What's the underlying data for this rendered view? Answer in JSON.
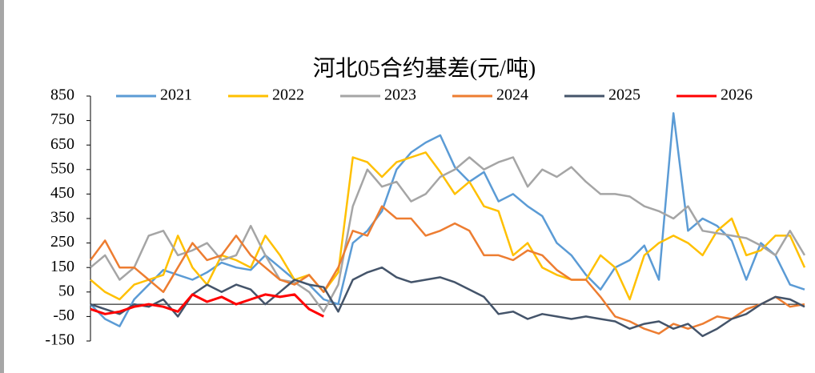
{
  "chart_data": {
    "type": "line",
    "title": "河北05合约基差(元/吨)",
    "categories": [
      null,
      null,
      null,
      null,
      null,
      null,
      null,
      null,
      null,
      null,
      null,
      null,
      null,
      null,
      null,
      null,
      null,
      null,
      null,
      null,
      null,
      null,
      null,
      null,
      null,
      null,
      null,
      null,
      null,
      null,
      null,
      null,
      null,
      null,
      null,
      null,
      null,
      null,
      null,
      null,
      null,
      null,
      null,
      null,
      null,
      null,
      null,
      null,
      null,
      null
    ],
    "ylim": [
      -150,
      850
    ],
    "yticks": [
      -150,
      -50,
      50,
      150,
      250,
      350,
      450,
      550,
      650,
      750,
      850
    ],
    "series": [
      {
        "name": "2021",
        "color": "#5b9bd5",
        "values": [
          0,
          -60,
          -90,
          20,
          80,
          140,
          120,
          100,
          130,
          170,
          150,
          140,
          200,
          150,
          100,
          80,
          20,
          0,
          250,
          300,
          380,
          550,
          620,
          660,
          690,
          560,
          500,
          540,
          420,
          450,
          400,
          360,
          250,
          200,
          120,
          60,
          150,
          180,
          240,
          100,
          780,
          300,
          350,
          320,
          260,
          100,
          250,
          200,
          80,
          60
        ]
      },
      {
        "name": "2022",
        "color": "#ffc000",
        "values": [
          100,
          50,
          20,
          80,
          100,
          120,
          280,
          150,
          80,
          200,
          180,
          150,
          280,
          200,
          100,
          120,
          50,
          130,
          600,
          580,
          520,
          580,
          600,
          620,
          540,
          450,
          500,
          400,
          380,
          200,
          250,
          150,
          120,
          100,
          100,
          200,
          150,
          20,
          200,
          250,
          280,
          250,
          200,
          300,
          350,
          200,
          220,
          280,
          280,
          150
        ]
      },
      {
        "name": "2023",
        "color": "#a5a5a5",
        "values": [
          150,
          200,
          100,
          150,
          280,
          300,
          200,
          220,
          250,
          180,
          200,
          320,
          200,
          100,
          90,
          50,
          -30,
          80,
          400,
          550,
          480,
          500,
          420,
          450,
          520,
          550,
          600,
          550,
          580,
          600,
          480,
          550,
          520,
          560,
          500,
          450,
          450,
          440,
          400,
          380,
          350,
          400,
          300,
          290,
          280,
          270,
          240,
          200,
          300,
          200
        ]
      },
      {
        "name": "2024",
        "color": "#ed7d31",
        "values": [
          180,
          260,
          150,
          150,
          100,
          50,
          150,
          250,
          180,
          200,
          280,
          200,
          150,
          100,
          80,
          120,
          50,
          150,
          300,
          280,
          400,
          350,
          350,
          280,
          300,
          330,
          300,
          200,
          200,
          180,
          220,
          200,
          140,
          100,
          100,
          30,
          -50,
          -70,
          -100,
          -120,
          -80,
          -100,
          -80,
          -50,
          -60,
          -20,
          0,
          30,
          -10,
          0
        ]
      },
      {
        "name": "2025",
        "color": "#44546a",
        "values": [
          0,
          -20,
          -40,
          0,
          -10,
          20,
          -50,
          40,
          80,
          50,
          80,
          60,
          0,
          50,
          100,
          80,
          70,
          -30,
          100,
          130,
          150,
          110,
          90,
          100,
          110,
          90,
          60,
          30,
          -40,
          -30,
          -60,
          -40,
          -50,
          -60,
          -50,
          -60,
          -70,
          -100,
          -80,
          -70,
          -100,
          -80,
          -130,
          -100,
          -60,
          -40,
          0,
          30,
          20,
          -10
        ]
      },
      {
        "name": "2026",
        "color": "#ff0000",
        "values": [
          -20,
          -40,
          -30,
          -10,
          0,
          -10,
          -30,
          40,
          10,
          30,
          0,
          20,
          40,
          30,
          40,
          -20,
          -50,
          null,
          null,
          null,
          null,
          null,
          null,
          null,
          null,
          null,
          null,
          null,
          null,
          null,
          null,
          null,
          null,
          null,
          null,
          null,
          null,
          null,
          null,
          null,
          null,
          null,
          null,
          null,
          null,
          null,
          null,
          null,
          null,
          null
        ]
      }
    ]
  }
}
